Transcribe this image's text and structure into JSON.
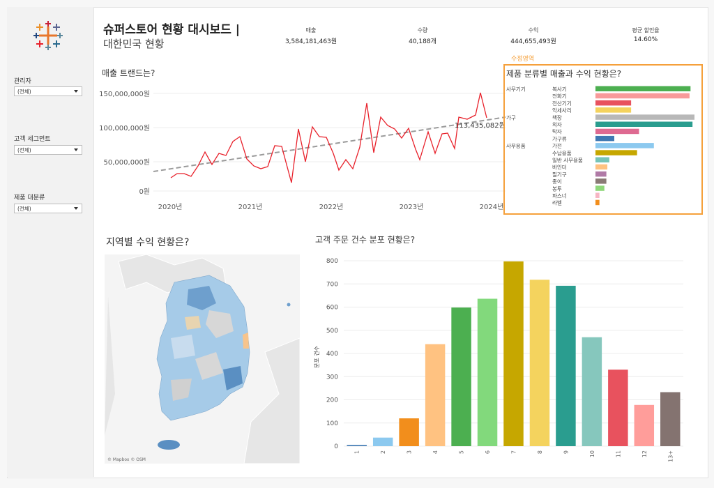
{
  "filters": [
    {
      "label": "관리자",
      "value": "(전체)"
    },
    {
      "label": "고객 세그먼트",
      "value": "(전체)"
    },
    {
      "label": "제품 대분류",
      "value": "(전체)"
    }
  ],
  "header": {
    "title_line1": "슈퍼스토어 현황 대시보드 |",
    "title_line2": "대한민국 현황"
  },
  "kpis": [
    {
      "label": "매출",
      "value": "3,584,181,463원"
    },
    {
      "label": "수량",
      "value": "40,188개"
    },
    {
      "label": "수익",
      "value": "444,655,493원"
    },
    {
      "label": "평균 할인율",
      "value": "14.60%"
    }
  ],
  "sales_trend": {
    "title": "매출 트랜드는?",
    "y_ticks": [
      "150,000,000원",
      "100,000,000원",
      "50,000,000원",
      "0원"
    ],
    "x_ticks": [
      "2020년",
      "2021년",
      "2022년",
      "2023년",
      "2024년"
    ],
    "annotation": "113,435,082원",
    "line_color": "#e8212b",
    "trend_color": "#9a9a9a"
  },
  "category_section": {
    "edit_label": "수정영역",
    "title": "제품 분류별 매출과 수익 현황은?",
    "highlight_color": "#f5a03b",
    "groups": [
      {
        "label": "사무기기",
        "first_index": 0
      },
      {
        "label": "가구",
        "first_index": 4
      },
      {
        "label": "사무용품",
        "first_index": 8
      }
    ],
    "items": [
      {
        "label": "복사기",
        "value": 96,
        "color": "#4caf50"
      },
      {
        "label": "전화기",
        "value": 95,
        "color": "#f89a9a"
      },
      {
        "label": "전산기기",
        "value": 36,
        "color": "#e8525e"
      },
      {
        "label": "악세사리",
        "value": 36,
        "color": "#f4d35e"
      },
      {
        "label": "책장",
        "value": 100,
        "color": "#b8b8b8"
      },
      {
        "label": "의자",
        "value": 98,
        "color": "#2a9d8f"
      },
      {
        "label": "탁자",
        "value": 44,
        "color": "#de6a91"
      },
      {
        "label": "가구류",
        "value": 19,
        "color": "#3e78b2"
      },
      {
        "label": "가전",
        "value": 59,
        "color": "#8cc9ef"
      },
      {
        "label": "수납용품",
        "value": 42,
        "color": "#c6a700"
      },
      {
        "label": "일반 사무용품",
        "value": 14,
        "color": "#76c4b8"
      },
      {
        "label": "바인더",
        "value": 12,
        "color": "#ffc281"
      },
      {
        "label": "필기구",
        "value": 11,
        "color": "#b07aa6"
      },
      {
        "label": "종이",
        "value": 11,
        "color": "#8a7a76"
      },
      {
        "label": "봉투",
        "value": 9,
        "color": "#8fd77a"
      },
      {
        "label": "파스너",
        "value": 4,
        "color": "#f7b6c4"
      },
      {
        "label": "라벨",
        "value": 4,
        "color": "#f28e1c"
      }
    ]
  },
  "map_section": {
    "title": "지역별 수익 현황은?",
    "credit": "© Mapbox © OSM"
  },
  "chart_data": {
    "type": "bar",
    "title": "고객 주문 건수 분포 현황은?",
    "ylabel": "분포 건수",
    "xlabel": "",
    "ylim": [
      0,
      800
    ],
    "y_ticks": [
      0,
      100,
      200,
      300,
      400,
      500,
      600,
      700,
      800
    ],
    "categories": [
      "1",
      "2",
      "3",
      "4",
      "5",
      "6",
      "7",
      "8",
      "9",
      "10",
      "11",
      "12",
      "13+"
    ],
    "values": [
      5,
      37,
      120,
      440,
      598,
      636,
      797,
      718,
      692,
      470,
      330,
      178,
      233
    ],
    "colors": [
      "#3e78b2",
      "#8cc9ef",
      "#f28e1c",
      "#ffc281",
      "#4caf50",
      "#82d97c",
      "#c6a700",
      "#f4d35e",
      "#2a9d8f",
      "#86c7bd",
      "#e8525e",
      "#ff9d9a",
      "#847370"
    ]
  }
}
